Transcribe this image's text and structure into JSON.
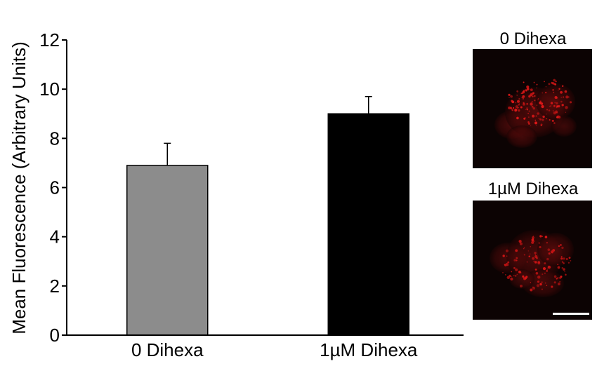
{
  "chart_data": {
    "type": "bar",
    "title": "",
    "xlabel": "",
    "ylabel": "Mean Fluorescence (Arbitrary Units)",
    "categories": [
      "0 Dihexa",
      "1µM Dihexa"
    ],
    "values": [
      6.9,
      9.0
    ],
    "errors": [
      0.9,
      0.7
    ],
    "ylim": [
      0,
      12
    ],
    "yticks": [
      0,
      2,
      4,
      6,
      8,
      10,
      12
    ],
    "bar_colors": [
      "#8c8c8c",
      "#000000"
    ],
    "grid": false
  },
  "images": [
    {
      "label": "0 Dihexa",
      "type": "red fluorescence micrograph"
    },
    {
      "label": "1µM Dihexa",
      "type": "red fluorescence micrograph with scale bar"
    }
  ]
}
